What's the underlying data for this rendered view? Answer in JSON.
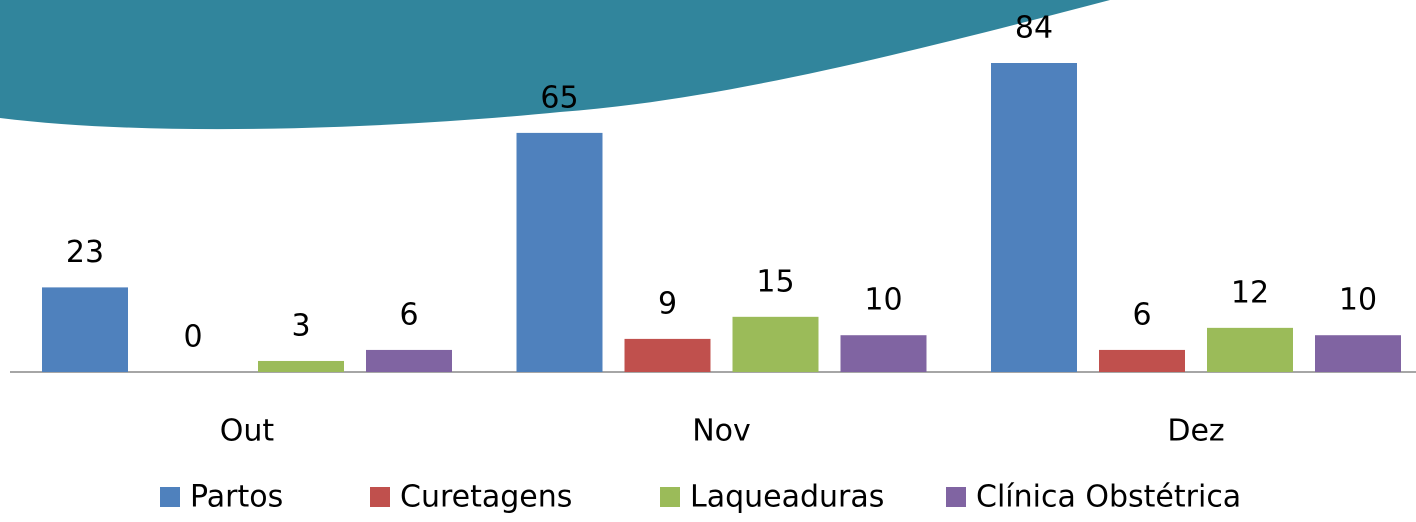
{
  "chart_data": {
    "type": "bar",
    "categories": [
      "Out",
      "Nov",
      "Dez"
    ],
    "series": [
      {
        "name": "Partos",
        "color": "#4f81bd",
        "values": [
          23,
          65,
          84
        ]
      },
      {
        "name": "Curetagens",
        "color": "#c0504d",
        "values": [
          0,
          9,
          6
        ]
      },
      {
        "name": "Laqueaduras",
        "color": "#9bbb59",
        "values": [
          3,
          15,
          12
        ]
      },
      {
        "name": "Clínica Obstétrica",
        "color": "#8064a2",
        "values": [
          6,
          10,
          10
        ]
      }
    ]
  }
}
